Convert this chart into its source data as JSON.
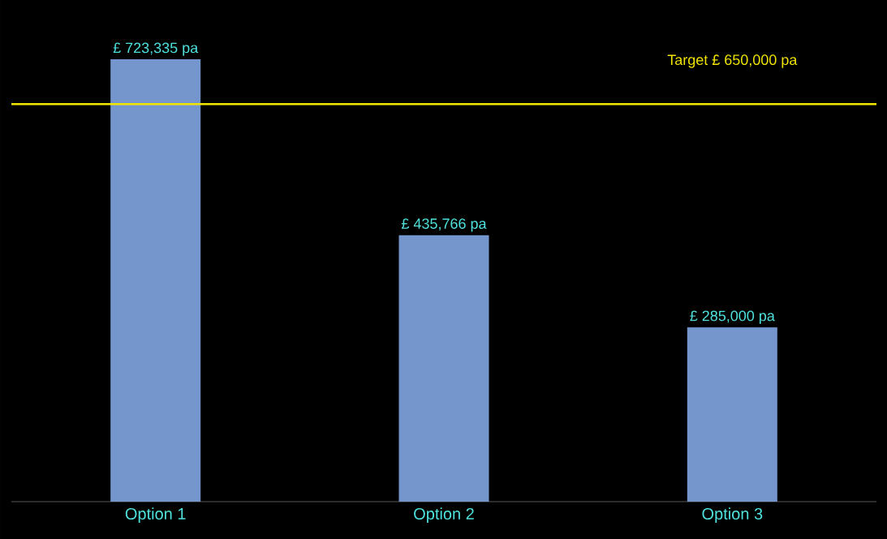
{
  "chart_data": {
    "type": "bar",
    "categories": [
      "Option 1",
      "Option 2",
      "Option 3"
    ],
    "values": [
      723335,
      435766,
      285000
    ],
    "value_labels": [
      "£ 723,335 pa",
      "£ 435,766 pa",
      "£ 285,000 pa"
    ],
    "color": "#7596cd",
    "tick_labels": "x",
    "grid": false,
    "ref_lines": [
      {
        "axis": "y",
        "value": 650000,
        "label": "Target £ 650,000 pa",
        "color": "#f2e600"
      }
    ]
  }
}
